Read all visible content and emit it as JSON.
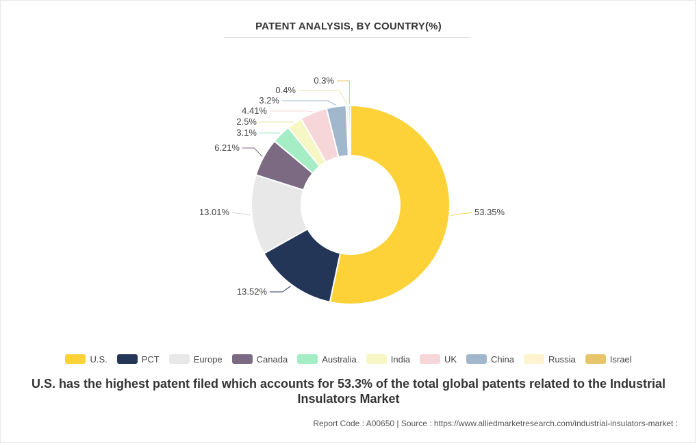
{
  "chart_data": {
    "type": "pie",
    "title": "PATENT ANALYSIS, BY COUNTRY(%)",
    "categories": [
      "U.S.",
      "PCT",
      "Europe",
      "Canada",
      "Australia",
      "India",
      "UK",
      "China",
      "Russia",
      "Israel"
    ],
    "values": [
      53.35,
      13.52,
      13.01,
      6.21,
      3.1,
      2.5,
      4.41,
      3.2,
      0.4,
      0.3
    ],
    "labels": [
      "53.35%",
      "13.52%",
      "13.01%",
      "6.21%",
      "3.1%",
      "2.5%",
      "4.41%",
      "3.2%",
      "0.4%",
      "0.3%"
    ],
    "colors": [
      "#fdd239",
      "#243657",
      "#e8e8e8",
      "#7b6a82",
      "#a4edc5",
      "#f7f6c5",
      "#f7d6da",
      "#a0b7cc",
      "#fdf4cf",
      "#e8c56a"
    ],
    "donut": true,
    "legend_position": "bottom"
  },
  "caption": {
    "line1": "U.S. has the highest patent filed which accounts for 53.3% of the total global patents related to the Industrial",
    "line2": "Insulators Market"
  },
  "footer": {
    "text": "Report Code : A00650  |  Source : https://www.alliedmarketresearch.com/industrial-insulators-market :"
  }
}
